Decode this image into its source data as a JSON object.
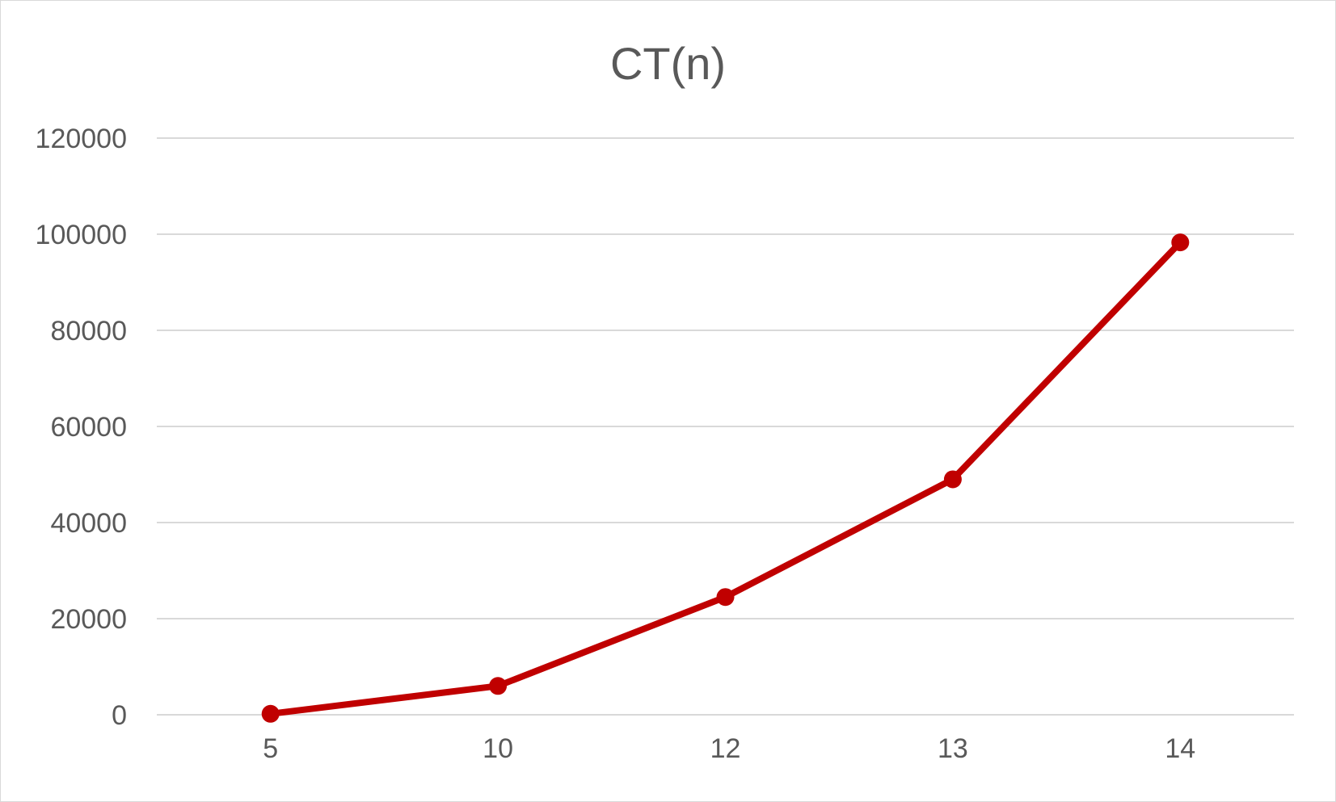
{
  "chart_data": {
    "type": "line",
    "title": "CT(n)",
    "xlabel": "",
    "ylabel": "",
    "categories": [
      "5",
      "10",
      "12",
      "13",
      "14"
    ],
    "series": [
      {
        "values": [
          200,
          6000,
          24500,
          49000,
          98300
        ]
      }
    ],
    "ylim": [
      0,
      120000
    ],
    "yticks": [
      "0",
      "20000",
      "40000",
      "60000",
      "80000",
      "100000",
      "120000"
    ],
    "grid": true,
    "legend": "none",
    "series_color": "#c00000"
  }
}
